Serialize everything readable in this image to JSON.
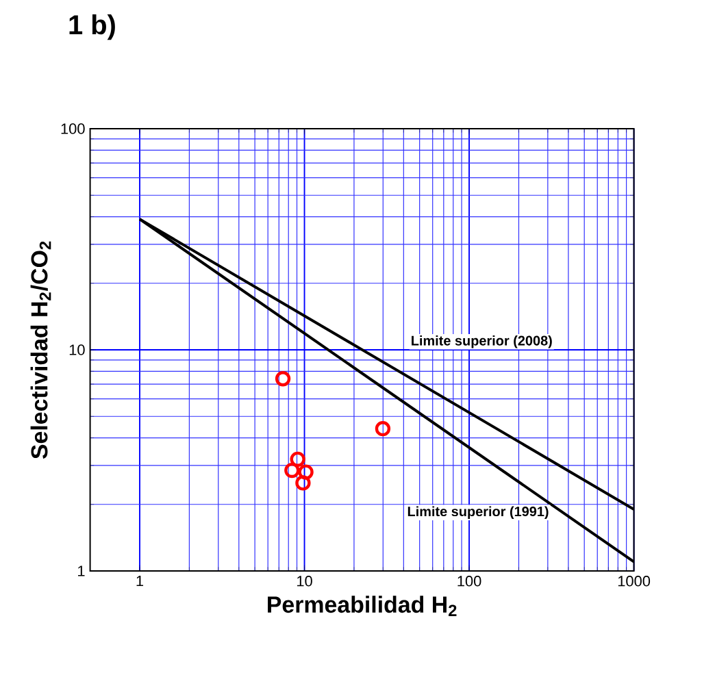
{
  "chart_data": {
    "type": "scatter",
    "title": "1   b)",
    "xlabel": "Permeabilidad H$_{2}$",
    "ylabel": "Selectividad H$_{2}$/CO$_{2}$",
    "log": "xy",
    "grid": true,
    "legend": false,
    "xlim": [
      0.5,
      1000
    ],
    "ylim": [
      1,
      100
    ],
    "xticks": [
      1,
      10,
      100,
      1000
    ],
    "yticks": [
      1,
      10,
      100
    ],
    "series": [
      {
        "name": "Limite superior (2008)",
        "type": "line",
        "color": "#000000",
        "marker": "none",
        "x": [
          1,
          1000
        ],
        "values": [
          39,
          1.9
        ]
      },
      {
        "name": "Limite superior (1991)",
        "type": "line",
        "color": "#000000",
        "marker": "none",
        "x": [
          1,
          1000
        ],
        "values": [
          39,
          1.1
        ]
      },
      {
        "color": "#ff0000",
        "marker": "circle",
        "x": [
          7.4,
          29.9,
          9.1,
          10.2,
          8.4,
          9.8
        ],
        "values": [
          7.4,
          4.4,
          3.2,
          2.8,
          2.85,
          2.5
        ]
      }
    ]
  }
}
